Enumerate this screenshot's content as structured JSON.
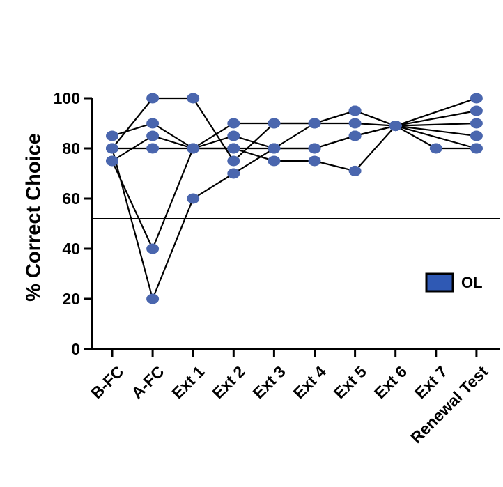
{
  "chart_data": {
    "type": "line",
    "categories": [
      "B-FC",
      "A-FC",
      "Ext 1",
      "Ext 2",
      "Ext 3",
      "Ext 4",
      "Ext 5",
      "Ext 6",
      "Ext 7",
      "Renewal Test"
    ],
    "ylabel": "% Correct Choice",
    "ylim": [
      0,
      100
    ],
    "yticks": [
      0,
      20,
      40,
      60,
      80,
      100
    ],
    "reference_line": 52,
    "series": [
      {
        "values": [
          85,
          90,
          80,
          90,
          90,
          90,
          90,
          89,
          null,
          90
        ]
      },
      {
        "values": [
          80,
          100,
          100,
          75,
          90,
          90,
          95,
          89,
          null,
          100
        ]
      },
      {
        "values": [
          75,
          85,
          80,
          85,
          80,
          80,
          85,
          89,
          80,
          80
        ]
      },
      {
        "values": [
          80,
          80,
          80,
          80,
          75,
          75,
          71,
          89,
          null,
          85
        ]
      },
      {
        "values": [
          75,
          40,
          80,
          80,
          80,
          80,
          85,
          89,
          null,
          80
        ]
      },
      {
        "values": [
          80,
          20,
          60,
          70,
          80,
          90,
          95,
          89,
          null,
          95
        ]
      }
    ],
    "legend": {
      "label": "OL",
      "position": "right"
    },
    "colors": {
      "marker": "#4a66ae",
      "line": "#000000",
      "legend_swatch": "#2f59b4"
    }
  }
}
